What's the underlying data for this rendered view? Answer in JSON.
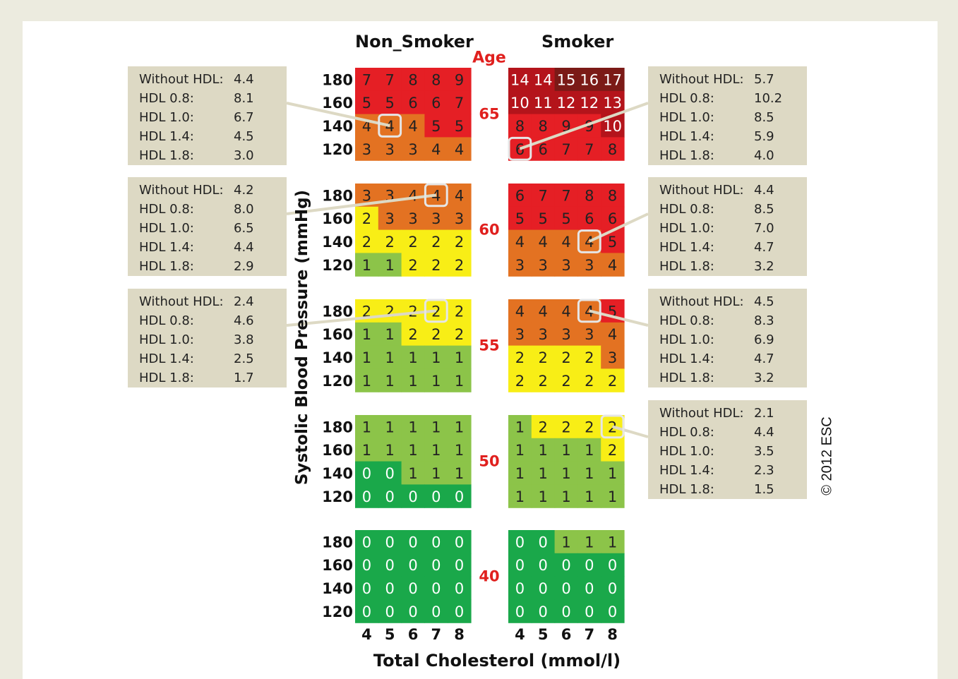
{
  "labels": {
    "non_smoker": "Non_Smoker",
    "smoker": "Smoker",
    "age": "Age",
    "ylabel": "Systolic Blood Pressure (mmHg)",
    "xlabel": "Total Cholesterol (mmol/l)",
    "copyright": "© 2012 ESC"
  },
  "colors": {
    "dark_green": "#1aa84a",
    "light_green": "#8cc449",
    "yellow": "#f8ee16",
    "orange": "#e37222",
    "red": "#e51f25",
    "dark_red": "#b4141b",
    "darkest_red": "#7b1a17",
    "box_bg": "#ddd9c4",
    "age_color": "#e0201e",
    "highlight": "#e6e6e6"
  },
  "chart_data": {
    "type": "heatmap",
    "title": "",
    "xlabel": "Total Cholesterol (mmol/l)",
    "ylabel": "Systolic Blood Pressure (mmHg)",
    "cholesterol": [
      4,
      5,
      6,
      7,
      8
    ],
    "sbp": [
      180,
      160,
      140,
      120
    ],
    "ages": [
      65,
      60,
      55,
      50,
      40
    ],
    "groups": [
      "Non_Smoker",
      "Smoker"
    ],
    "grids": [
      {
        "age": 65,
        "non_smoker": [
          [
            7,
            7,
            8,
            8,
            9
          ],
          [
            5,
            5,
            6,
            6,
            7
          ],
          [
            4,
            4,
            4,
            5,
            5
          ],
          [
            3,
            3,
            3,
            4,
            4
          ]
        ],
        "smoker": [
          [
            14,
            14,
            15,
            16,
            17
          ],
          [
            10,
            11,
            12,
            12,
            13
          ],
          [
            8,
            8,
            9,
            9,
            10
          ],
          [
            6,
            6,
            7,
            7,
            8
          ]
        ]
      },
      {
        "age": 60,
        "non_smoker": [
          [
            3,
            3,
            4,
            4,
            4
          ],
          [
            2,
            3,
            3,
            3,
            3
          ],
          [
            2,
            2,
            2,
            2,
            2
          ],
          [
            1,
            1,
            2,
            2,
            2
          ]
        ],
        "smoker": [
          [
            6,
            7,
            7,
            8,
            8
          ],
          [
            5,
            5,
            5,
            6,
            6
          ],
          [
            4,
            4,
            4,
            4,
            5
          ],
          [
            3,
            3,
            3,
            3,
            4
          ]
        ]
      },
      {
        "age": 55,
        "non_smoker": [
          [
            2,
            2,
            2,
            2,
            2
          ],
          [
            1,
            1,
            2,
            2,
            2
          ],
          [
            1,
            1,
            1,
            1,
            1
          ],
          [
            1,
            1,
            1,
            1,
            1
          ]
        ],
        "smoker": [
          [
            4,
            4,
            4,
            4,
            5
          ],
          [
            3,
            3,
            3,
            3,
            4
          ],
          [
            2,
            2,
            2,
            2,
            3
          ],
          [
            2,
            2,
            2,
            2,
            2
          ]
        ]
      },
      {
        "age": 50,
        "non_smoker": [
          [
            1,
            1,
            1,
            1,
            1
          ],
          [
            1,
            1,
            1,
            1,
            1
          ],
          [
            0,
            0,
            1,
            1,
            1
          ],
          [
            0,
            0,
            0,
            0,
            0
          ]
        ],
        "smoker": [
          [
            1,
            2,
            2,
            2,
            2
          ],
          [
            1,
            1,
            1,
            1,
            2
          ],
          [
            1,
            1,
            1,
            1,
            1
          ],
          [
            1,
            1,
            1,
            1,
            1
          ]
        ]
      },
      {
        "age": 40,
        "non_smoker": [
          [
            0,
            0,
            0,
            0,
            0
          ],
          [
            0,
            0,
            0,
            0,
            0
          ],
          [
            0,
            0,
            0,
            0,
            0
          ],
          [
            0,
            0,
            0,
            0,
            0
          ]
        ],
        "smoker": [
          [
            0,
            0,
            1,
            1,
            1
          ],
          [
            0,
            0,
            0,
            0,
            0
          ],
          [
            0,
            0,
            0,
            0,
            0
          ],
          [
            0,
            0,
            0,
            0,
            0
          ]
        ]
      }
    ],
    "callouts": [
      {
        "group": "Non_Smoker",
        "age": 65,
        "sbp": 140,
        "cholesterol": 5,
        "rows": [
          [
            "Without HDL:",
            "4.4"
          ],
          [
            "HDL 0.8:",
            "8.1"
          ],
          [
            "HDL 1.0:",
            "6.7"
          ],
          [
            "HDL 1.4:",
            "4.5"
          ],
          [
            "HDL 1.8:",
            "3.0"
          ]
        ]
      },
      {
        "group": "Non_Smoker",
        "age": 60,
        "sbp": 180,
        "cholesterol": 7,
        "rows": [
          [
            "Without HDL:",
            "4.2"
          ],
          [
            "HDL 0.8:",
            "8.0"
          ],
          [
            "HDL 1.0:",
            "6.5"
          ],
          [
            "HDL 1.4:",
            "4.4"
          ],
          [
            "HDL 1.8:",
            "2.9"
          ]
        ]
      },
      {
        "group": "Non_Smoker",
        "age": 55,
        "sbp": 180,
        "cholesterol": 7,
        "rows": [
          [
            "Without HDL:",
            "2.4"
          ],
          [
            "HDL 0.8:",
            "4.6"
          ],
          [
            "HDL 1.0:",
            "3.8"
          ],
          [
            "HDL 1.4:",
            "2.5"
          ],
          [
            "HDL 1.8:",
            "1.7"
          ]
        ]
      },
      {
        "group": "Smoker",
        "age": 65,
        "sbp": 120,
        "cholesterol": 4,
        "rows": [
          [
            "Without HDL:",
            "5.7"
          ],
          [
            "HDL 0.8:",
            "10.2"
          ],
          [
            "HDL 1.0:",
            "8.5"
          ],
          [
            "HDL 1.4:",
            "5.9"
          ],
          [
            "HDL 1.8:",
            "4.0"
          ]
        ]
      },
      {
        "group": "Smoker",
        "age": 60,
        "sbp": 140,
        "cholesterol": 7,
        "rows": [
          [
            "Without HDL:",
            "4.4"
          ],
          [
            "HDL 0.8:",
            "8.5"
          ],
          [
            "HDL 1.0:",
            "7.0"
          ],
          [
            "HDL 1.4:",
            "4.7"
          ],
          [
            "HDL 1.8:",
            "3.2"
          ]
        ]
      },
      {
        "group": "Smoker",
        "age": 55,
        "sbp": 180,
        "cholesterol": 7,
        "rows": [
          [
            "Without HDL:",
            "4.5"
          ],
          [
            "HDL 0.8:",
            "8.3"
          ],
          [
            "HDL 1.0:",
            "6.9"
          ],
          [
            "HDL 1.4:",
            "4.7"
          ],
          [
            "HDL 1.8:",
            "3.2"
          ]
        ]
      },
      {
        "group": "Smoker",
        "age": 50,
        "sbp": 180,
        "cholesterol": 8,
        "rows": [
          [
            "Without HDL:",
            "2.1"
          ],
          [
            "HDL 0.8:",
            "4.4"
          ],
          [
            "HDL 1.0:",
            "3.5"
          ],
          [
            "HDL 1.4:",
            "2.3"
          ],
          [
            "HDL 1.8:",
            "1.5"
          ]
        ]
      }
    ]
  }
}
